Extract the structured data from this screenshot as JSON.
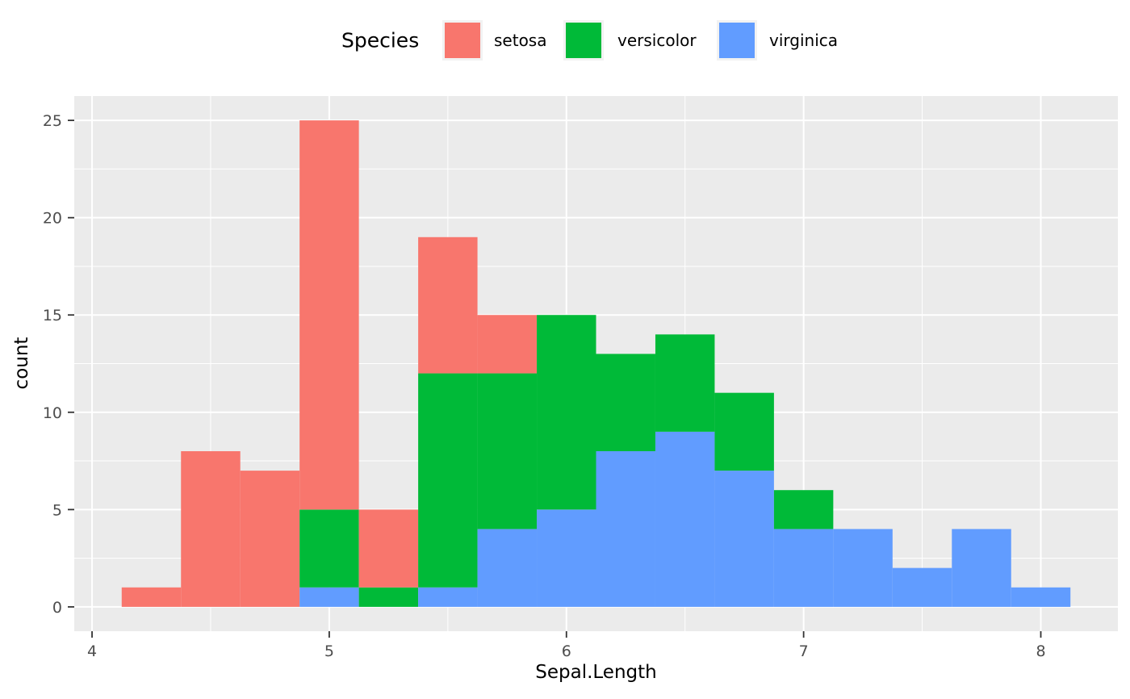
{
  "chart_data": {
    "type": "bar",
    "subtype": "stacked-histogram",
    "dataset": "iris",
    "legend_title": "Species",
    "xlabel": "Sepal.Length",
    "ylabel": "count",
    "bin_edges": [
      4.125,
      4.375,
      4.625,
      4.875,
      5.125,
      5.375,
      5.625,
      5.875,
      6.125,
      6.375,
      6.625,
      6.875,
      7.125,
      7.375,
      7.625,
      7.875,
      8.125
    ],
    "series": [
      {
        "name": "setosa",
        "color": "#F8766D",
        "values": [
          1,
          8,
          7,
          20,
          4,
          7,
          3,
          0,
          0,
          0,
          0,
          0,
          0,
          0,
          0,
          0
        ]
      },
      {
        "name": "versicolor",
        "color": "#00BA38",
        "values": [
          0,
          0,
          0,
          4,
          1,
          11,
          8,
          10,
          5,
          5,
          4,
          2,
          0,
          0,
          0,
          0
        ]
      },
      {
        "name": "virginica",
        "color": "#619CFF",
        "values": [
          0,
          0,
          0,
          1,
          0,
          1,
          4,
          5,
          8,
          9,
          7,
          4,
          4,
          2,
          4,
          1
        ]
      }
    ],
    "bin_totals": [
      1,
      8,
      7,
      25,
      5,
      19,
      15,
      15,
      13,
      14,
      11,
      6,
      4,
      2,
      4,
      1
    ],
    "stack_order_bottom_to_top": [
      "virginica",
      "versicolor",
      "setosa"
    ],
    "x_ticks": [
      4,
      5,
      6,
      7,
      8
    ],
    "y_ticks": [
      0,
      5,
      10,
      15,
      20,
      25
    ],
    "x_minor_ticks": [
      4.5,
      5.5,
      6.5,
      7.5
    ],
    "y_minor_ticks": [
      2.5,
      7.5,
      12.5,
      17.5,
      22.5
    ],
    "x_range": [
      3.925,
      8.325
    ],
    "y_range": [
      -1.25,
      26.25
    ],
    "grid": true,
    "legend_position": "top",
    "colors": {
      "panel_background": "#EBEBEB",
      "grid": "#FFFFFF",
      "tick_mark": "#333333",
      "tick_label": "#4D4D4D",
      "axis_title": "#000000",
      "legend_key_background": "#F2F2F2"
    }
  }
}
